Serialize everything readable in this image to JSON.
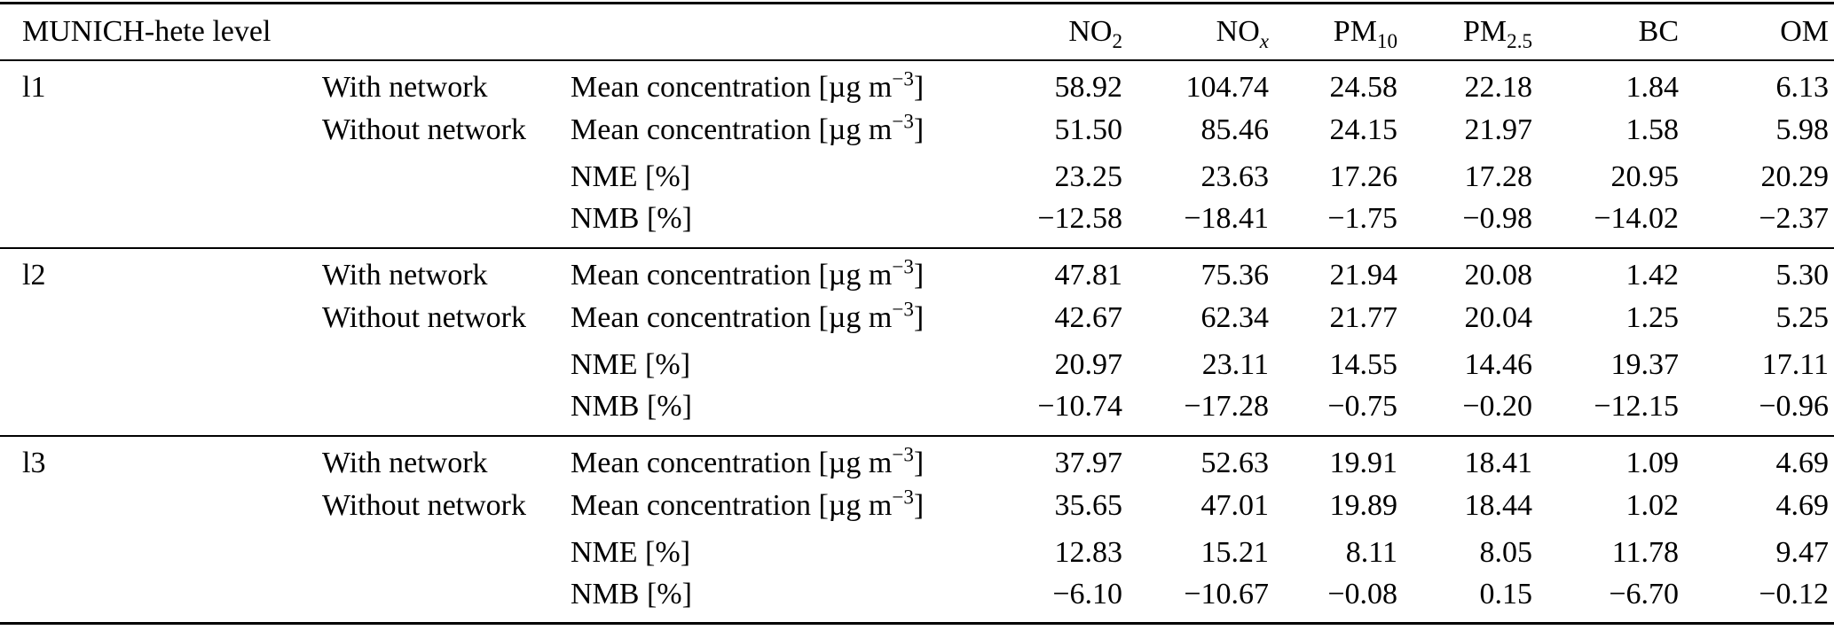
{
  "table": {
    "header": {
      "level_label": "MUNICH-hete level",
      "columns": [
        {
          "key": "no2",
          "base": "NO",
          "sub": "2",
          "italic_sub": false
        },
        {
          "key": "nox",
          "base": "NO",
          "sub": "x",
          "italic_sub": true
        },
        {
          "key": "pm10",
          "base": "PM",
          "sub": "10",
          "italic_sub": false
        },
        {
          "key": "pm25",
          "base": "PM",
          "sub": "2.5",
          "italic_sub": false
        },
        {
          "key": "bc",
          "base": "BC",
          "sub": "",
          "italic_sub": false
        },
        {
          "key": "om",
          "base": "OM",
          "sub": "",
          "italic_sub": false
        }
      ]
    },
    "metric_labels": {
      "mean_pre": "Mean concentration [µg m",
      "mean_sup": "−3",
      "mean_post": "]",
      "nme": "NME [%]",
      "nmb": "NMB [%]"
    },
    "groups": [
      {
        "level": "l1",
        "rows": [
          {
            "network": "With network",
            "metric": "mean",
            "values": [
              "58.92",
              "104.74",
              "24.58",
              "22.18",
              "1.84",
              "6.13"
            ]
          },
          {
            "network": "Without network",
            "metric": "mean",
            "values": [
              "51.50",
              "85.46",
              "24.15",
              "21.97",
              "1.58",
              "5.98"
            ]
          },
          {
            "network": "",
            "metric": "nme",
            "values": [
              "23.25",
              "23.63",
              "17.26",
              "17.28",
              "20.95",
              "20.29"
            ]
          },
          {
            "network": "",
            "metric": "nmb",
            "values": [
              "−12.58",
              "−18.41",
              "−1.75",
              "−0.98",
              "−14.02",
              "−2.37"
            ]
          }
        ]
      },
      {
        "level": "l2",
        "rows": [
          {
            "network": "With network",
            "metric": "mean",
            "values": [
              "47.81",
              "75.36",
              "21.94",
              "20.08",
              "1.42",
              "5.30"
            ]
          },
          {
            "network": "Without network",
            "metric": "mean",
            "values": [
              "42.67",
              "62.34",
              "21.77",
              "20.04",
              "1.25",
              "5.25"
            ]
          },
          {
            "network": "",
            "metric": "nme",
            "values": [
              "20.97",
              "23.11",
              "14.55",
              "14.46",
              "19.37",
              "17.11"
            ]
          },
          {
            "network": "",
            "metric": "nmb",
            "values": [
              "−10.74",
              "−17.28",
              "−0.75",
              "−0.20",
              "−12.15",
              "−0.96"
            ]
          }
        ]
      },
      {
        "level": "l3",
        "rows": [
          {
            "network": "With network",
            "metric": "mean",
            "values": [
              "37.97",
              "52.63",
              "19.91",
              "18.41",
              "1.09",
              "4.69"
            ]
          },
          {
            "network": "Without network",
            "metric": "mean",
            "values": [
              "35.65",
              "47.01",
              "19.89",
              "18.44",
              "1.02",
              "4.69"
            ]
          },
          {
            "network": "",
            "metric": "nme",
            "values": [
              "12.83",
              "15.21",
              "8.11",
              "8.05",
              "11.78",
              "9.47"
            ]
          },
          {
            "network": "",
            "metric": "nmb",
            "values": [
              "−6.10",
              "−10.67",
              "−0.08",
              "0.15",
              "−6.70",
              "−0.12"
            ]
          }
        ]
      }
    ]
  }
}
